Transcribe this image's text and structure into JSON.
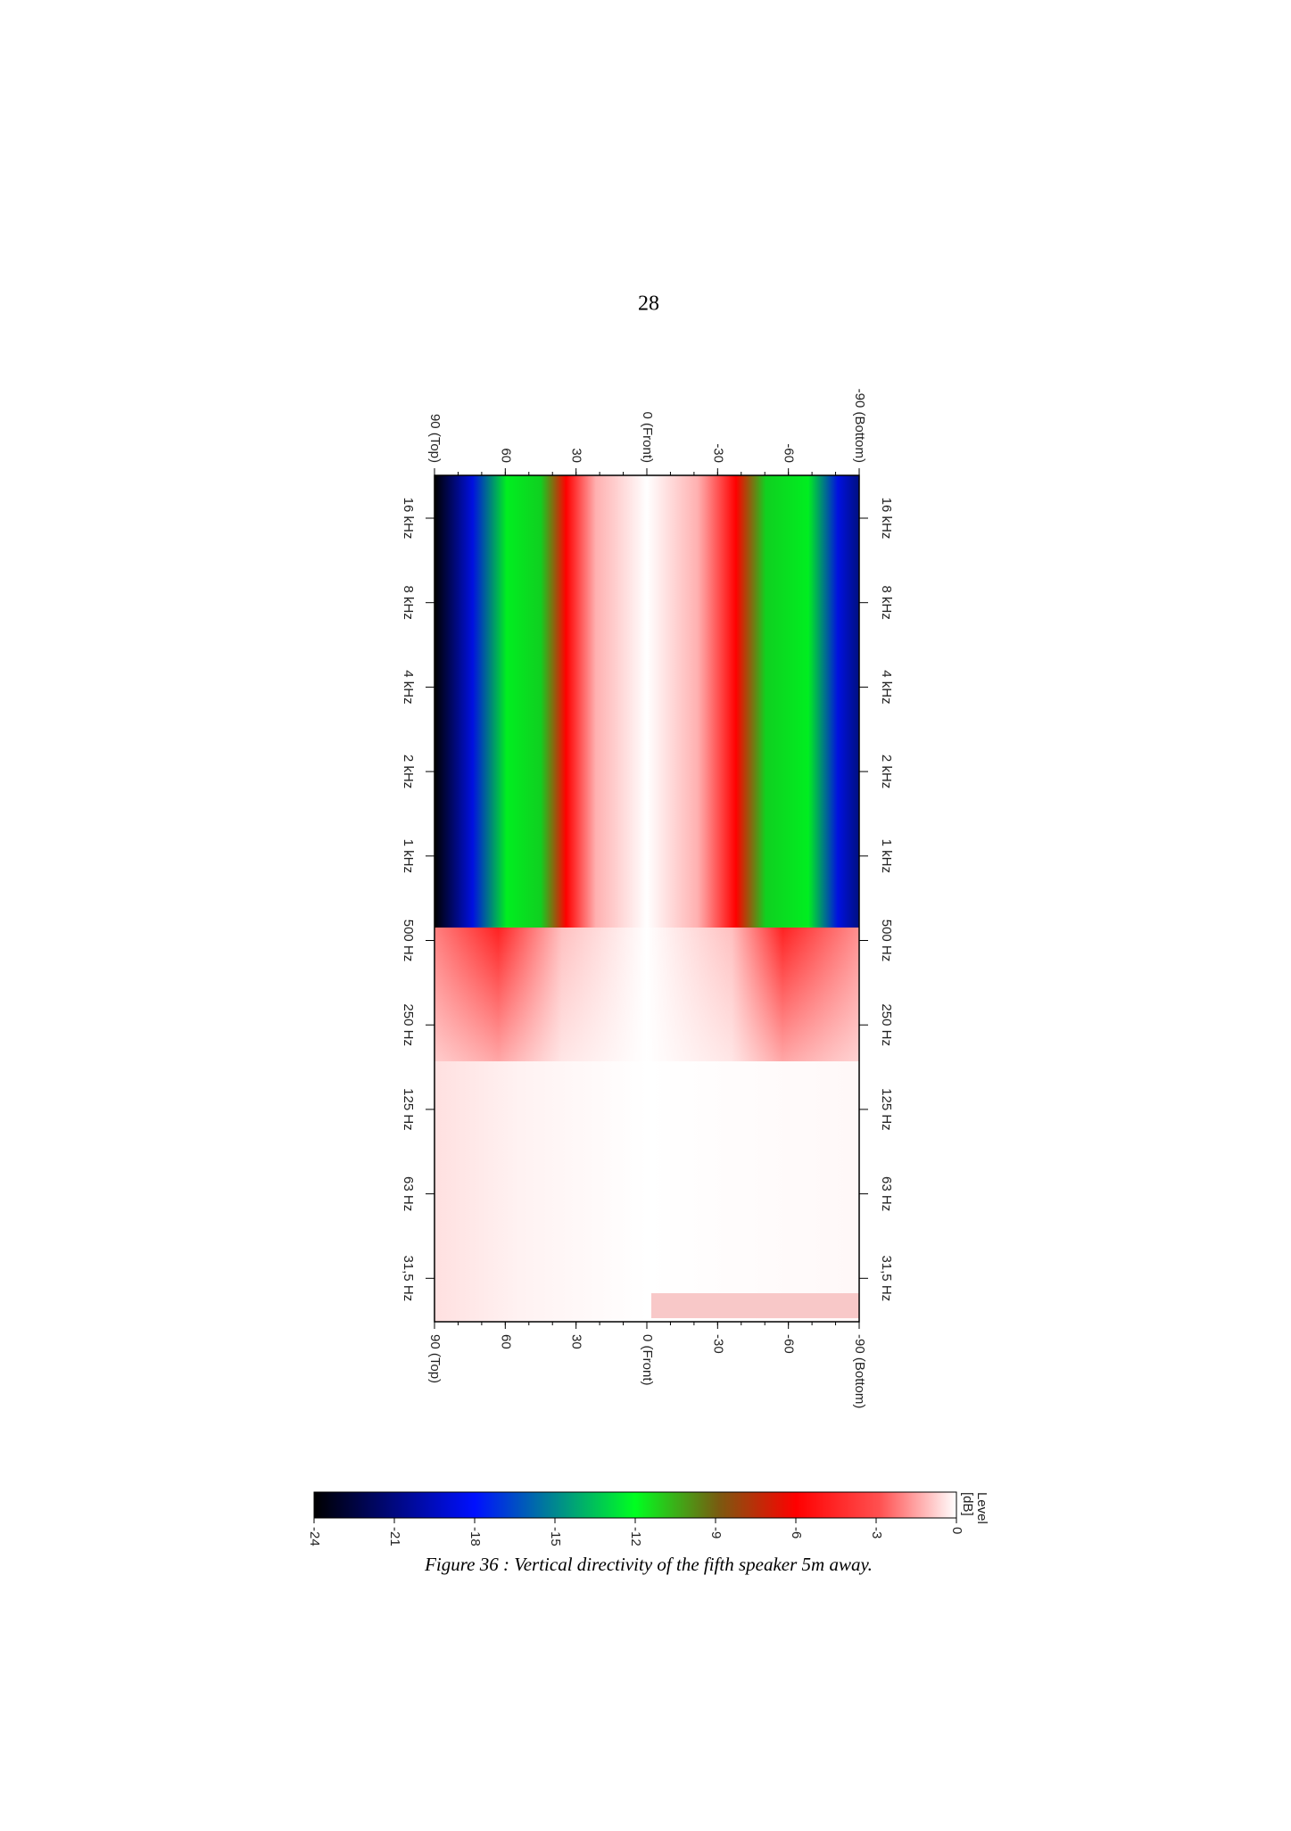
{
  "page_number": "28",
  "figure": {
    "angle_labels": [
      "90 (Top)",
      "60",
      "30",
      "0 (Front)",
      "-30",
      "-60",
      "-90 (Bottom)"
    ],
    "frequency_labels": [
      "16 kHz",
      "8 kHz",
      "4 kHz",
      "2 kHz",
      "1 kHz",
      "500 Hz",
      "250 Hz",
      "125 Hz",
      "63 Hz",
      "31,5 Hz"
    ]
  },
  "colorbar": {
    "title_lines": [
      "Level",
      "[dB]"
    ],
    "range": [
      -24,
      0
    ],
    "ticks": [
      -24,
      -21,
      -18,
      -15,
      -12,
      -9,
      -6,
      -3,
      0
    ]
  },
  "caption": "Figure 36 : Vertical directivity of the fifth speaker 5m away."
}
